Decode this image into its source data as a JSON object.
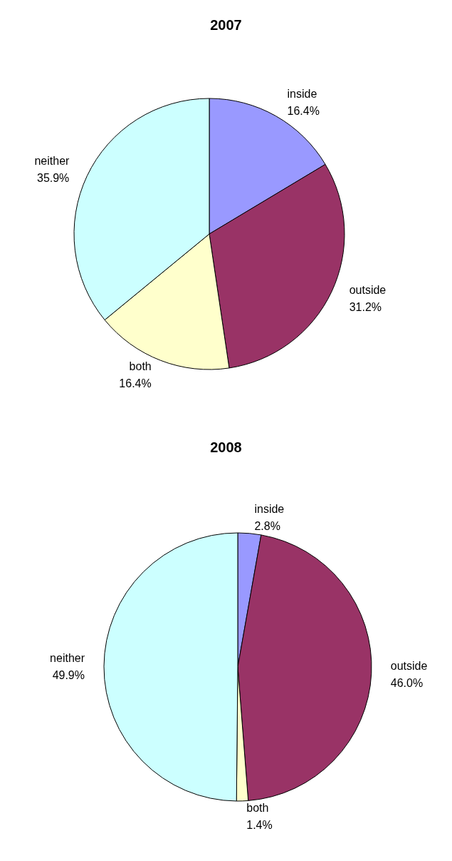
{
  "chart_data": [
    {
      "type": "pie",
      "title": "2007",
      "categories": [
        "inside",
        "outside",
        "both",
        "neither"
      ],
      "values": [
        16.4,
        31.2,
        16.4,
        35.9
      ],
      "colors": [
        "#9999ff",
        "#993366",
        "#ffffcc",
        "#ccffff"
      ],
      "value_labels": [
        "16.4%",
        "31.2%",
        "16.4%",
        "35.9%"
      ]
    },
    {
      "type": "pie",
      "title": "2008",
      "categories": [
        "inside",
        "outside",
        "both",
        "neither"
      ],
      "values": [
        2.8,
        46.0,
        1.4,
        49.9
      ],
      "colors": [
        "#9999ff",
        "#993366",
        "#ffffcc",
        "#ccffff"
      ],
      "value_labels": [
        "2.8%",
        "46.0%",
        "1.4%",
        "49.9%"
      ]
    }
  ]
}
